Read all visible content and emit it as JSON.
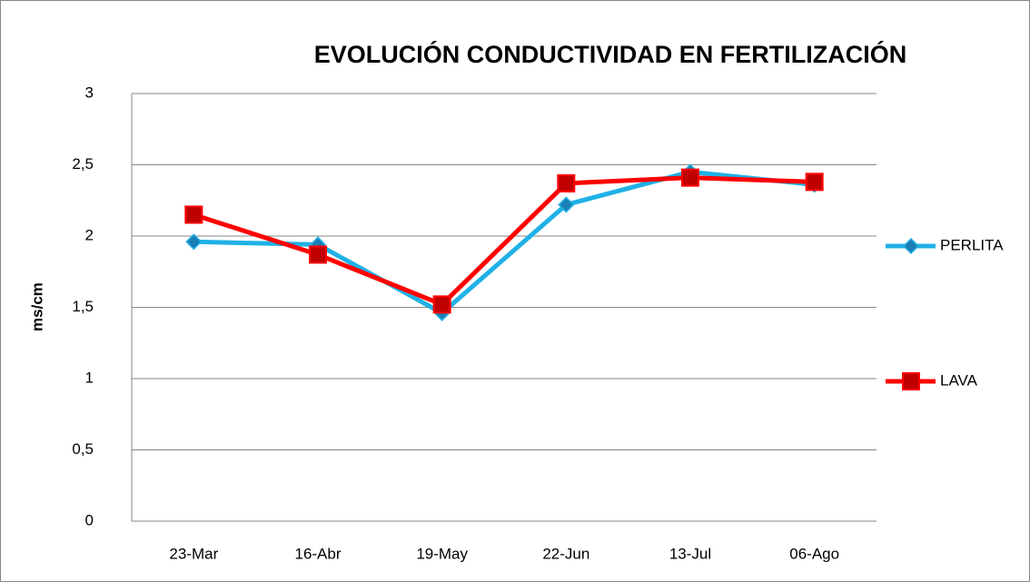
{
  "chart_data": {
    "type": "line",
    "title": "EVOLUCIÓN CONDUCTIVIDAD EN FERTILIZACIÓN",
    "y_label": "ms/cm",
    "categories": [
      "23-Mar",
      "16-Abr",
      "19-May",
      "22-Jun",
      "13-Jul",
      "06-Ago"
    ],
    "series": [
      {
        "name": "PERLITA",
        "color": "#1fb1e6",
        "marker": "diamond",
        "values": [
          1.96,
          1.94,
          1.46,
          2.22,
          2.45,
          2.36
        ]
      },
      {
        "name": "LAVA",
        "color": "#ff0000",
        "marker": "square",
        "values": [
          2.15,
          1.87,
          1.52,
          2.37,
          2.41,
          2.38
        ]
      }
    ],
    "ylim": [
      0,
      3
    ],
    "yticks": [
      0,
      {
        "value": 0.5,
        "label": "0,5"
      },
      1,
      {
        "value": 1.5,
        "label": "1,5"
      },
      2,
      {
        "value": 2.5,
        "label": "2,5"
      },
      3
    ],
    "grid": true,
    "legend": "right"
  }
}
